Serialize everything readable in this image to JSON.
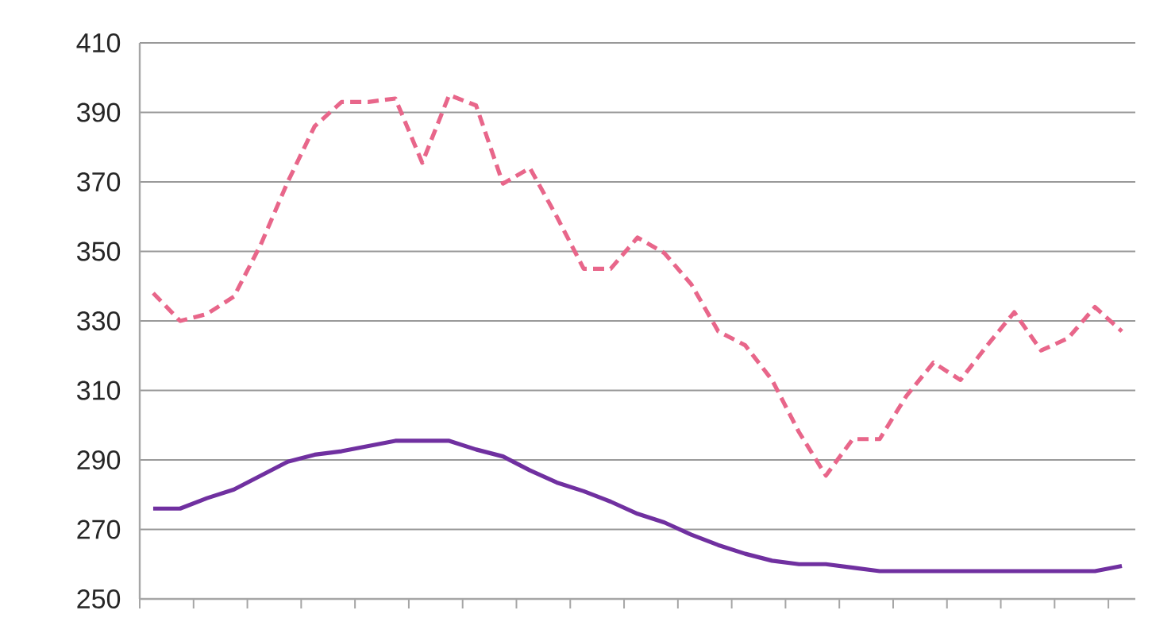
{
  "chart_data": {
    "type": "line",
    "categories": [
      null,
      null,
      null,
      null,
      null,
      null,
      null,
      null,
      null,
      null,
      null,
      null,
      null,
      null,
      null,
      null,
      null,
      null,
      null,
      null,
      null,
      null,
      null,
      null,
      null,
      null,
      null,
      null,
      null,
      null,
      null,
      null,
      null,
      null,
      null,
      null,
      null
    ],
    "series": [
      {
        "color": "#e8668a",
        "line_style": "dashed",
        "values": [
          338,
          330,
          332,
          337,
          352,
          370,
          386,
          393,
          393,
          394,
          375.5,
          395,
          392,
          369.5,
          374,
          360,
          345,
          345,
          354,
          349.5,
          340.5,
          327,
          323,
          313,
          298,
          285.5,
          296,
          296,
          308.5,
          318,
          313,
          323,
          332.5,
          321.5,
          325,
          334,
          327
        ]
      },
      {
        "color": "#7030a0",
        "line_style": "solid",
        "values": [
          276,
          276,
          279,
          281.5,
          285.5,
          289.5,
          291.5,
          292.5,
          294,
          295.5,
          295.5,
          295.5,
          293,
          291,
          287,
          283.5,
          281,
          278,
          274.5,
          272,
          268.5,
          265.5,
          263,
          261,
          260,
          260,
          259,
          258,
          258,
          258,
          258,
          258,
          258,
          258,
          258,
          258,
          259.5
        ]
      }
    ],
    "ylim": [
      250,
      410
    ],
    "yticks": [
      250,
      270,
      290,
      310,
      330,
      350,
      370,
      390,
      410
    ],
    "grid": "y",
    "tick_labels": "y"
  }
}
